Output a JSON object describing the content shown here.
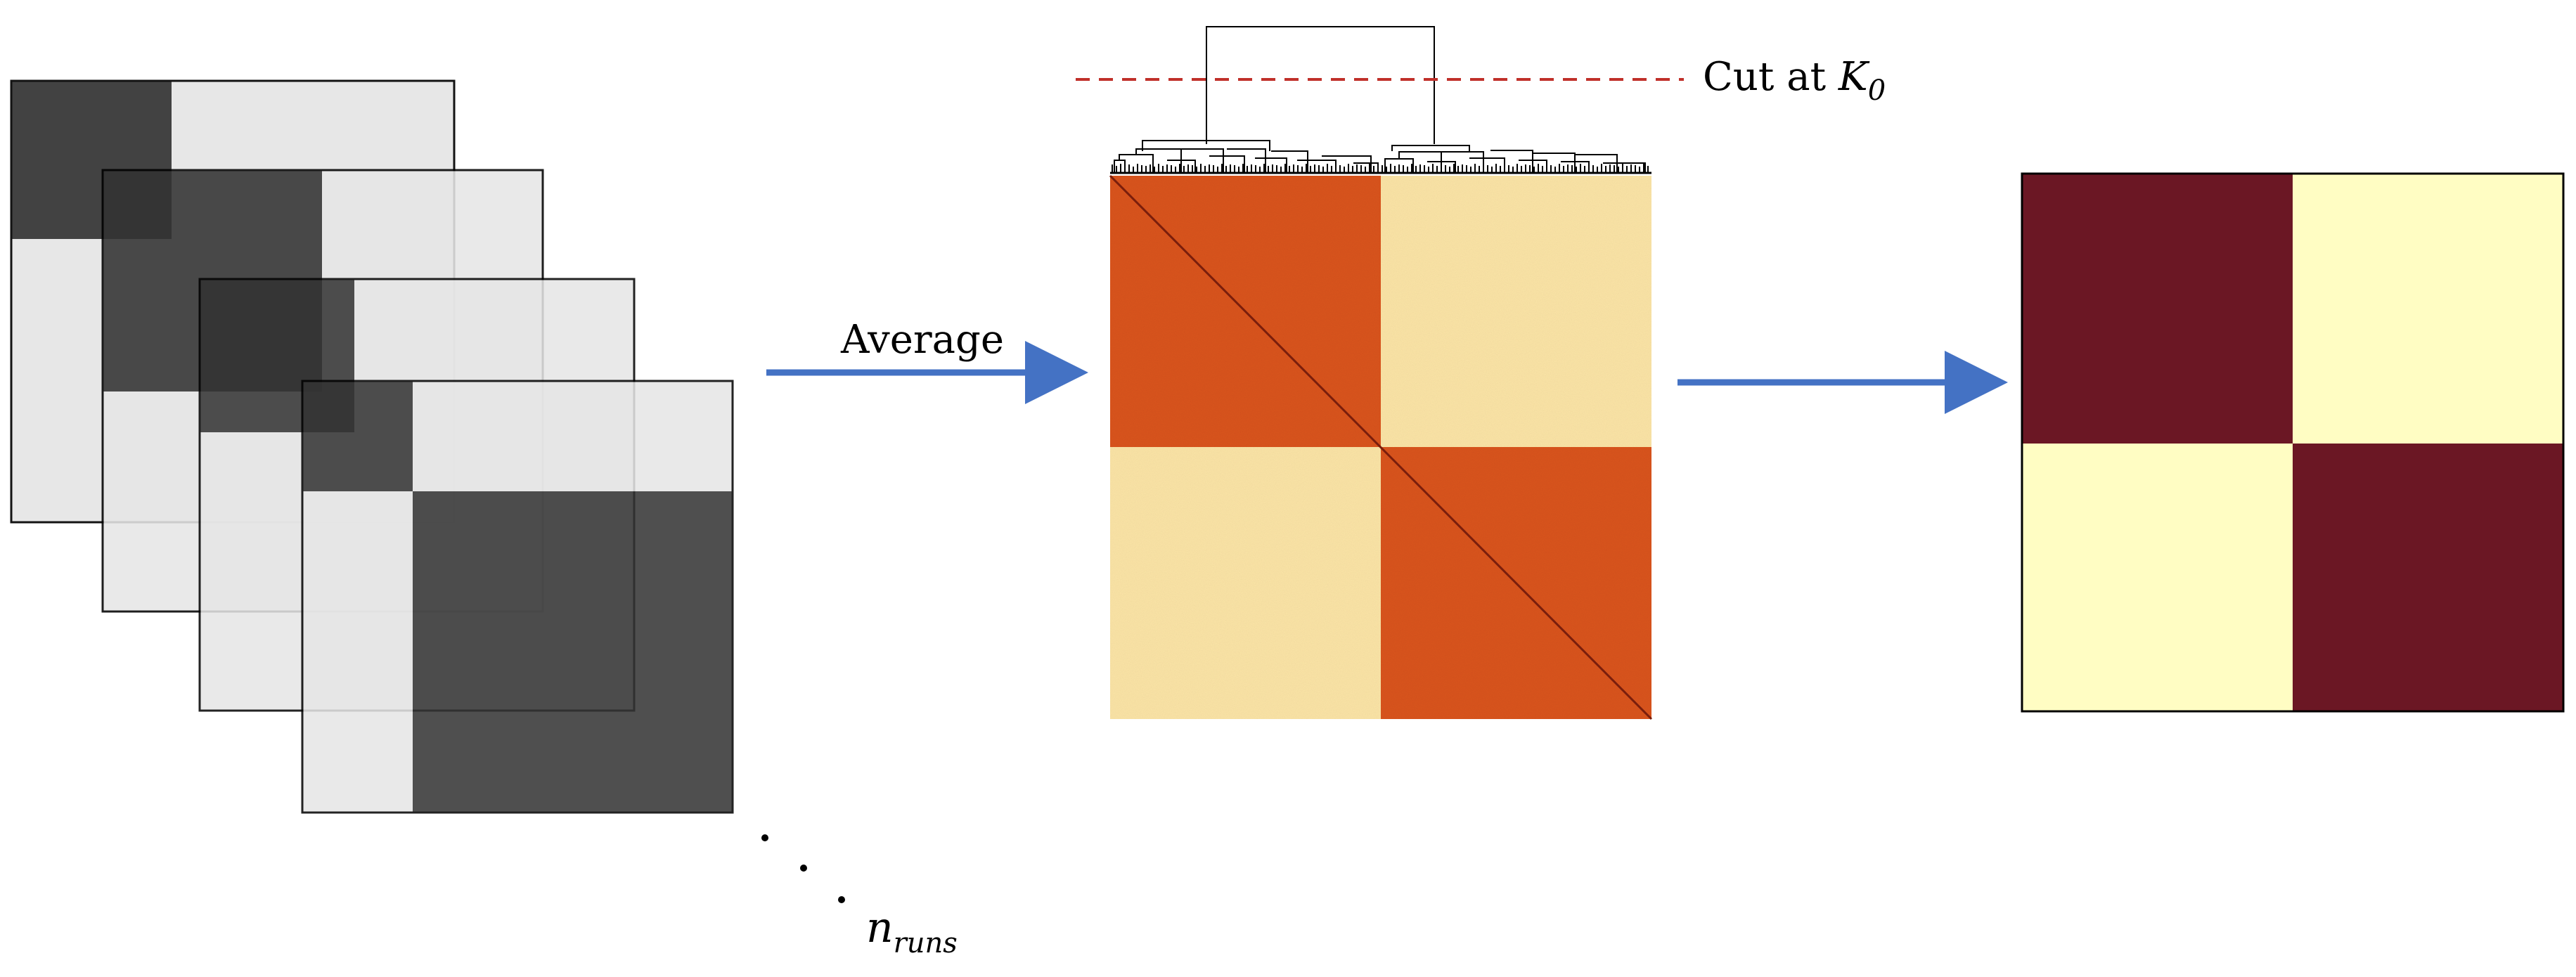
{
  "labels": {
    "average": "Average",
    "cut_prefix": "Cut at ",
    "cut_symbol": "K",
    "cut_subscript": "0",
    "runs_symbol": "n",
    "runs_subscript": "runs"
  },
  "colors": {
    "arrow": "#4472c4",
    "cut_line": "#c0302a",
    "outline": "#000000",
    "dark_block": "#333333",
    "light_block": "#e6e6e6",
    "heat_high": "#d9541e",
    "heat_low": "#fbe4a6",
    "final_dark": "#6b1724",
    "final_light": "#fffdc3"
  }
}
